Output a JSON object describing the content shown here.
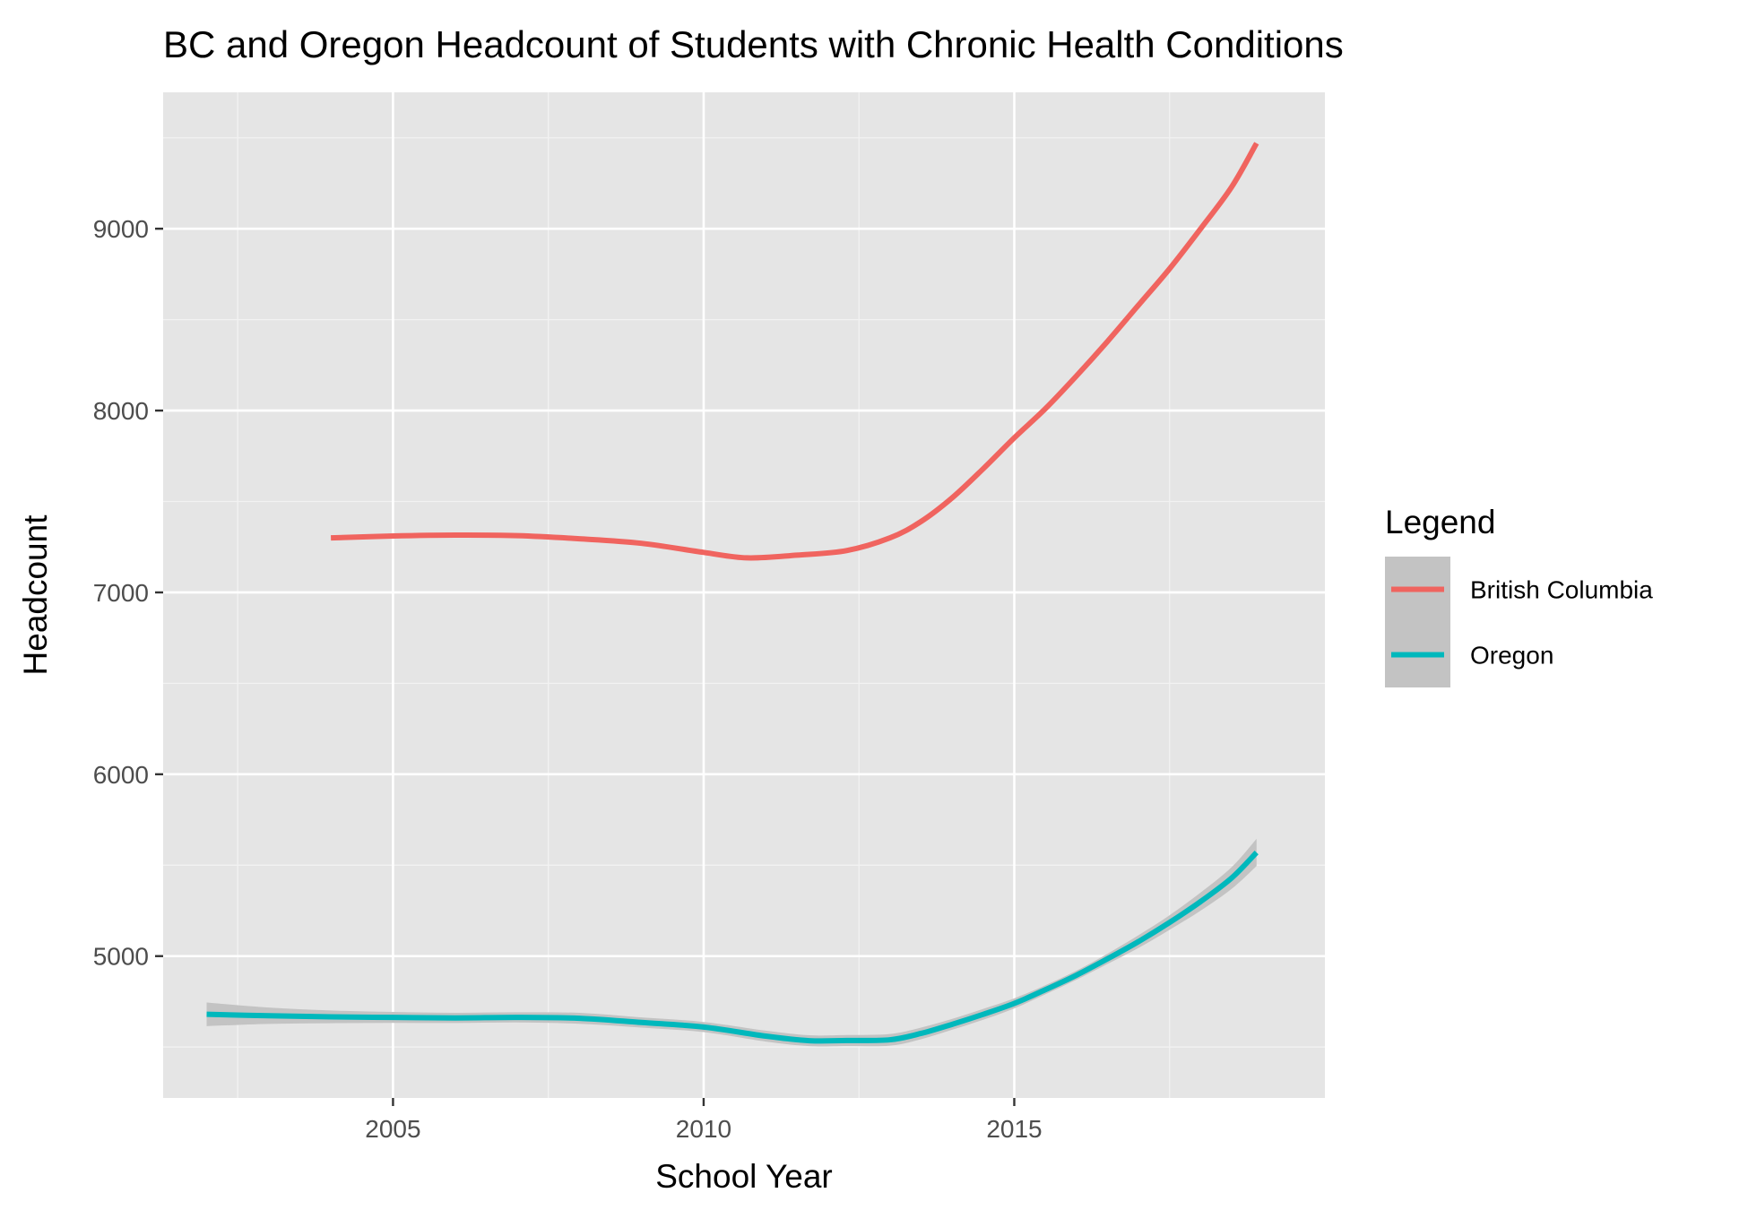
{
  "chart_data": {
    "type": "line",
    "title": "BC and Oregon Headcount of Students with Chronic Health Conditions",
    "xlabel": "School Year",
    "ylabel": "Headcount",
    "xlim": [
      2001.3,
      2020.0
    ],
    "ylim": [
      4220,
      9750
    ],
    "x_ticks": [
      2005,
      2010,
      2015
    ],
    "x_tick_labels": [
      "2005",
      "2010",
      "2015"
    ],
    "y_ticks": [
      5000,
      6000,
      7000,
      8000,
      9000
    ],
    "y_tick_labels": [
      "5000",
      "6000",
      "7000",
      "8000",
      "9000"
    ],
    "grid": true,
    "background": "#e5e5e5",
    "legend": {
      "title": "Legend",
      "position": "right",
      "entries": [
        "British Columbia",
        "Oregon"
      ]
    },
    "series": [
      {
        "name": "British Columbia",
        "color": "#f0645f",
        "ribbon": false,
        "points": [
          [
            2004.0,
            7300
          ],
          [
            2005.0,
            7310
          ],
          [
            2006.0,
            7315
          ],
          [
            2007.0,
            7312
          ],
          [
            2008.0,
            7295
          ],
          [
            2009.0,
            7270
          ],
          [
            2010.0,
            7220
          ],
          [
            2010.7,
            7190
          ],
          [
            2011.5,
            7205
          ],
          [
            2012.3,
            7230
          ],
          [
            2013.0,
            7300
          ],
          [
            2013.5,
            7390
          ],
          [
            2014.0,
            7520
          ],
          [
            2014.5,
            7680
          ],
          [
            2015.0,
            7850
          ],
          [
            2015.5,
            8010
          ],
          [
            2016.0,
            8190
          ],
          [
            2016.5,
            8380
          ],
          [
            2017.0,
            8580
          ],
          [
            2017.5,
            8780
          ],
          [
            2018.0,
            9000
          ],
          [
            2018.5,
            9230
          ],
          [
            2018.9,
            9470
          ]
        ]
      },
      {
        "name": "Oregon",
        "color": "#00b8bc",
        "ribbon": true,
        "ribbon_color": "#c3c3c3",
        "points": [
          [
            2002.0,
            4680
          ],
          [
            2003.0,
            4672
          ],
          [
            2004.0,
            4666
          ],
          [
            2005.0,
            4663
          ],
          [
            2006.0,
            4660
          ],
          [
            2007.0,
            4663
          ],
          [
            2008.0,
            4658
          ],
          [
            2009.0,
            4635
          ],
          [
            2010.0,
            4610
          ],
          [
            2011.0,
            4560
          ],
          [
            2011.7,
            4535
          ],
          [
            2012.3,
            4536
          ],
          [
            2013.0,
            4540
          ],
          [
            2013.5,
            4575
          ],
          [
            2014.0,
            4625
          ],
          [
            2014.5,
            4680
          ],
          [
            2015.0,
            4740
          ],
          [
            2015.5,
            4815
          ],
          [
            2016.0,
            4895
          ],
          [
            2016.5,
            4985
          ],
          [
            2017.0,
            5080
          ],
          [
            2017.5,
            5185
          ],
          [
            2018.0,
            5300
          ],
          [
            2018.5,
            5430
          ],
          [
            2018.9,
            5570
          ]
        ],
        "ribbon_halfwidth": [
          65,
          45,
          35,
          30,
          28,
          28,
          30,
          28,
          28,
          30,
          30,
          30,
          32,
          32,
          30,
          30,
          28,
          25,
          25,
          28,
          35,
          40,
          50,
          60,
          75
        ]
      }
    ]
  }
}
